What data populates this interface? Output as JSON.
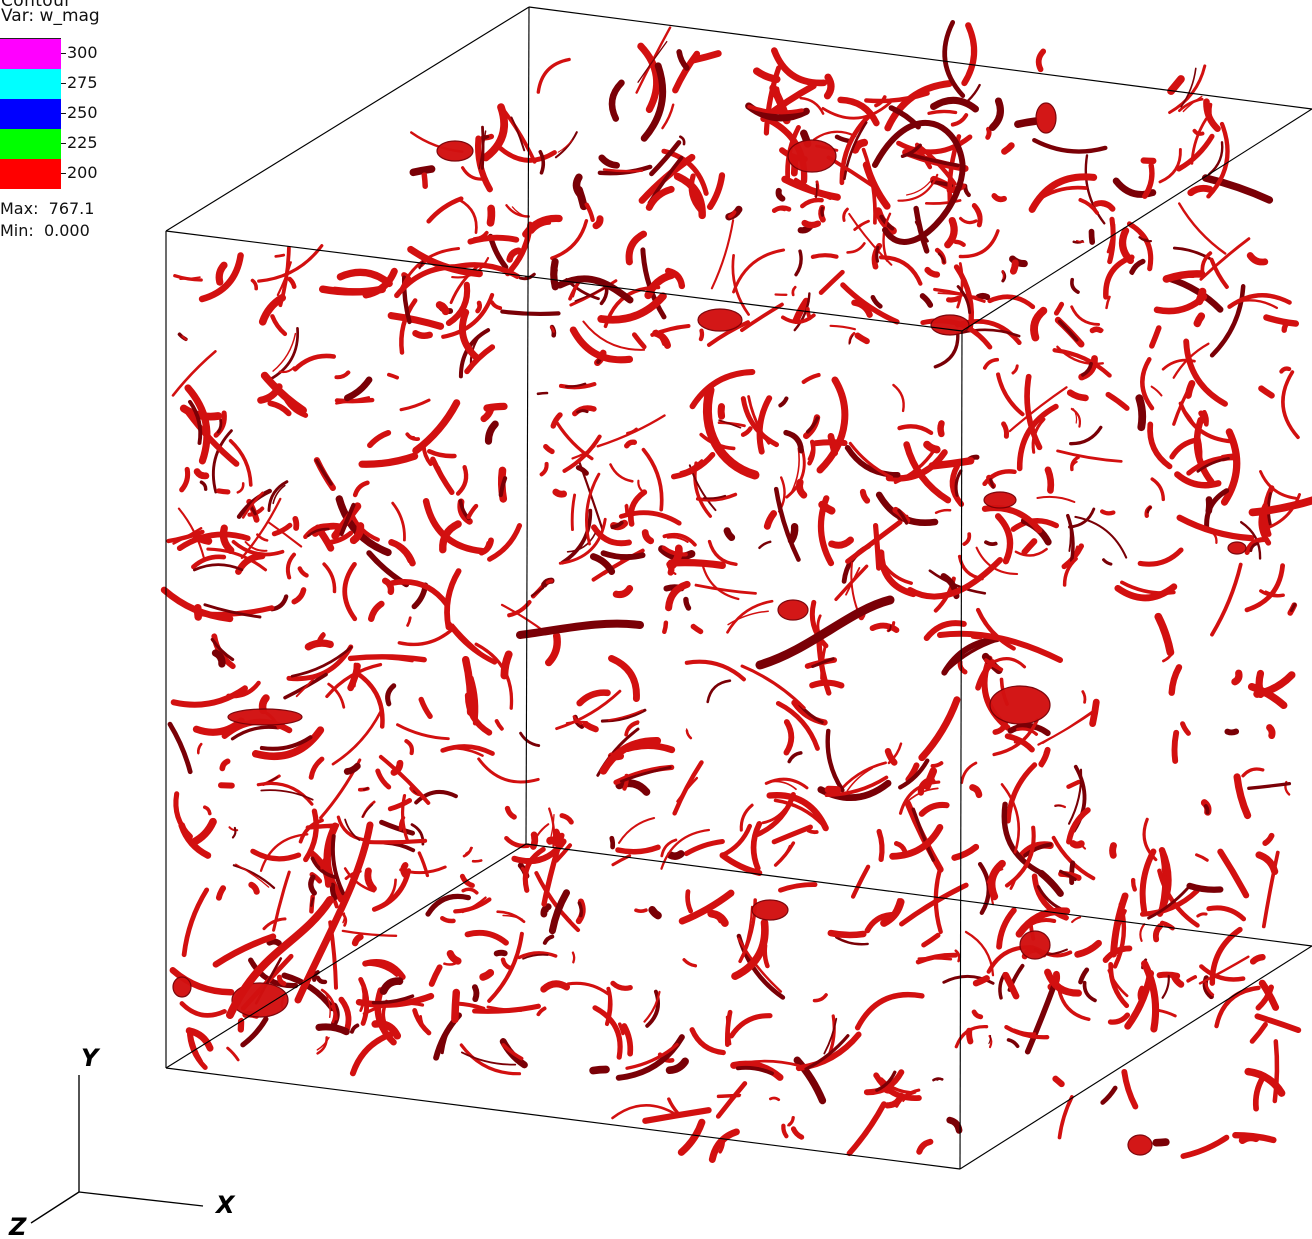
{
  "legend": {
    "top_label": "Contour",
    "var_label": "Var: w_mag",
    "segments": [
      {
        "value": "300",
        "color": "#ff00ff"
      },
      {
        "value": "275",
        "color": "#00ffff"
      },
      {
        "value": "250",
        "color": "#0000ff"
      },
      {
        "value": "225",
        "color": "#00ff00"
      },
      {
        "value": "200",
        "color": "#ff0000"
      }
    ],
    "max_text": "Max:  767.1",
    "min_text": "Min:  0.000"
  },
  "axes": {
    "x_label": "X",
    "y_label": "Y",
    "z_label": "Z"
  },
  "colors": {
    "isosurface": "#d21010",
    "isosurface_shadow": "#7a0006",
    "bounding_box": "#000000"
  }
}
